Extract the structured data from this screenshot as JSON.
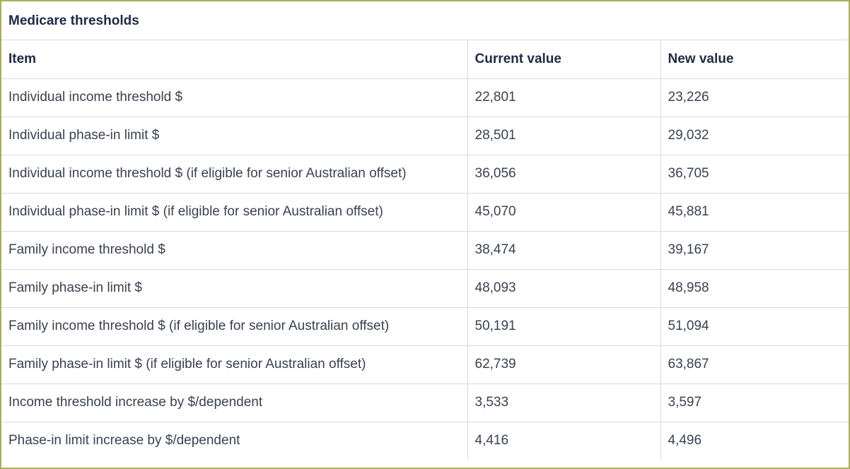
{
  "table": {
    "caption": "Medicare thresholds",
    "headers": [
      "Item",
      "Current value",
      "New value"
    ],
    "rows": [
      [
        "Individual income threshold $",
        "22,801",
        "23,226"
      ],
      [
        "Individual phase-in limit $",
        "28,501",
        "29,032"
      ],
      [
        "Individual income threshold $ (if eligible for senior Australian offset)",
        "36,056",
        "36,705"
      ],
      [
        "Individual phase-in limit $ (if eligible for senior Australian offset)",
        "45,070",
        "45,881"
      ],
      [
        "Family income threshold $",
        "38,474",
        "39,167"
      ],
      [
        "Family phase-in limit $",
        "48,093",
        "48,958"
      ],
      [
        "Family income threshold $ (if eligible for senior Australian offset)",
        "50,191",
        "51,094"
      ],
      [
        "Family phase-in limit $ (if eligible for senior Australian offset)",
        "62,739",
        "63,867"
      ],
      [
        "Income threshold increase by $/dependent",
        "3,533",
        "3,597"
      ],
      [
        "Phase-in limit increase by $/dependent",
        "4,416",
        "4,496"
      ]
    ]
  },
  "colors": {
    "border": "#a8b05a",
    "grid": "#d9d9d9",
    "heading_text": "#1f2a44",
    "body_text": "#3a4150"
  }
}
